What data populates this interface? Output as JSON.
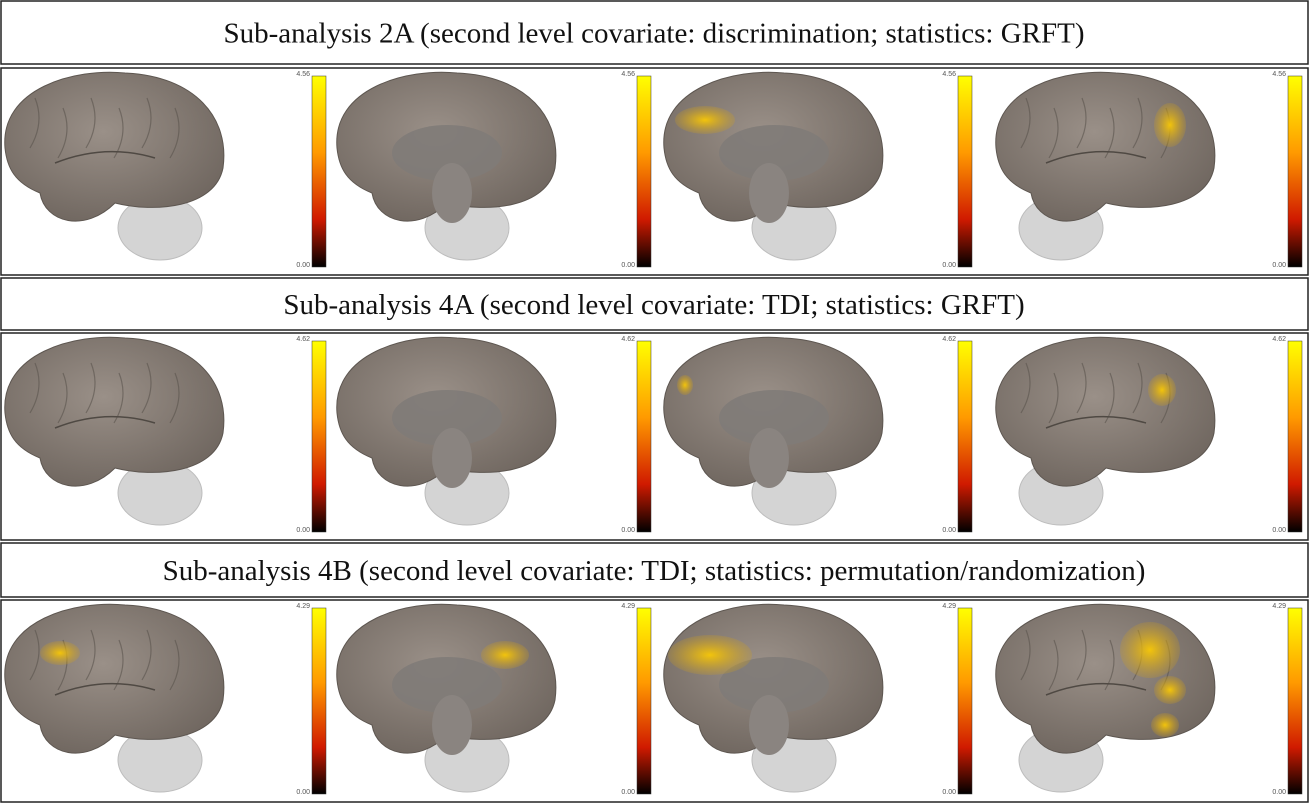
{
  "rows": [
    {
      "title": "Sub-analysis 2A (second level covariate: discrimination; statistics: GRFT)",
      "colorbars": [
        {
          "max": "4.56",
          "min": "0.00"
        },
        {
          "max": "4.56",
          "min": "0.00"
        },
        {
          "max": "4.56",
          "min": "0.00"
        },
        {
          "max": "4.56",
          "min": "0.00"
        }
      ]
    },
    {
      "title": "Sub-analysis 4A (second level covariate: TDI; statistics: GRFT)",
      "colorbars": [
        {
          "max": "4.62",
          "min": "0.00"
        },
        {
          "max": "4.62",
          "min": "0.00"
        },
        {
          "max": "4.62",
          "min": "0.00"
        },
        {
          "max": "4.62",
          "min": "0.00"
        }
      ]
    },
    {
      "title": "Sub-analysis 4B (second level covariate: TDI; statistics: permutation/randomization)",
      "colorbars": [
        {
          "max": "4.29",
          "min": "0.00"
        },
        {
          "max": "4.29",
          "min": "0.00"
        },
        {
          "max": "4.29",
          "min": "0.00"
        },
        {
          "max": "4.29",
          "min": "0.00"
        }
      ]
    }
  ]
}
